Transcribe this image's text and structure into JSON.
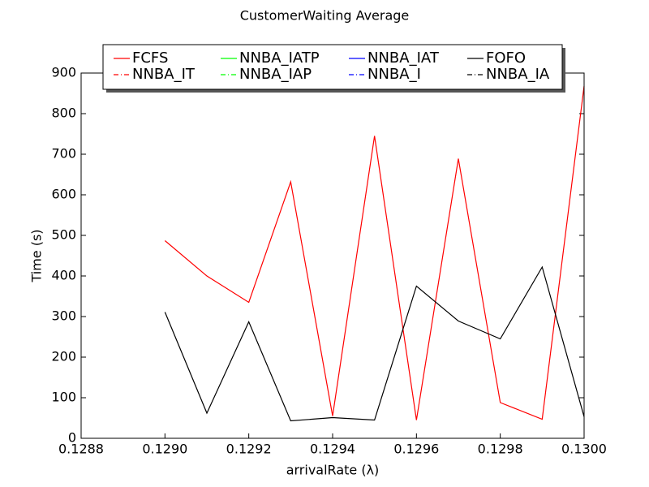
{
  "chart_data": {
    "type": "line",
    "title": "CustomerWaiting Average",
    "xlabel": "arrivalRate (λ)",
    "ylabel": "Time (s)",
    "x": [
      0.129,
      0.1291,
      0.1292,
      0.1293,
      0.1294,
      0.1295,
      0.1296,
      0.1297,
      0.1298,
      0.1299,
      0.13
    ],
    "series": [
      {
        "name": "FCFS",
        "color": "#ff0000",
        "linestyle": "-",
        "values": [
          487,
          400,
          335,
          632,
          55,
          745,
          45,
          689,
          88,
          47,
          868
        ]
      },
      {
        "name": "NNBA_IT",
        "color": "#ff0000",
        "linestyle": "-.",
        "values": [
          null,
          null,
          null,
          null,
          null,
          null,
          null,
          null,
          null,
          null,
          null
        ]
      },
      {
        "name": "NNBA_IATP",
        "color": "#00ff00",
        "linestyle": "-",
        "values": [
          null,
          null,
          null,
          null,
          null,
          null,
          null,
          null,
          null,
          null,
          null
        ]
      },
      {
        "name": "NNBA_IAP",
        "color": "#00ff00",
        "linestyle": "-.",
        "values": [
          null,
          null,
          null,
          null,
          null,
          null,
          null,
          null,
          null,
          null,
          null
        ]
      },
      {
        "name": "NNBA_IAT",
        "color": "#0000ff",
        "linestyle": "-",
        "values": [
          null,
          null,
          null,
          null,
          null,
          null,
          null,
          null,
          null,
          null,
          null
        ]
      },
      {
        "name": "NNBA_I",
        "color": "#0000ff",
        "linestyle": "-.",
        "values": [
          null,
          null,
          null,
          null,
          null,
          null,
          null,
          null,
          null,
          null,
          null
        ]
      },
      {
        "name": "FOFO",
        "color": "#000000",
        "linestyle": "-",
        "values": [
          311,
          62,
          287,
          43,
          51,
          45,
          375,
          289,
          245,
          422,
          53
        ]
      },
      {
        "name": "NNBA_IA",
        "color": "#000000",
        "linestyle": "-.",
        "values": [
          null,
          null,
          null,
          null,
          null,
          null,
          null,
          null,
          null,
          null,
          null
        ]
      }
    ],
    "xlim": [
      0.1288,
      0.13
    ],
    "xticks": [
      0.1288,
      {
        "value": 0.129,
        "label": "0.1290"
      },
      0.1292,
      0.1294,
      0.1296,
      0.1298,
      {
        "value": 0.13,
        "label": "0.1300"
      }
    ],
    "ylim": [
      0,
      900
    ],
    "yticks": [
      0,
      100,
      200,
      300,
      400,
      500,
      600,
      700,
      800,
      900
    ],
    "legend": "upper center",
    "legend_columns": 4
  }
}
